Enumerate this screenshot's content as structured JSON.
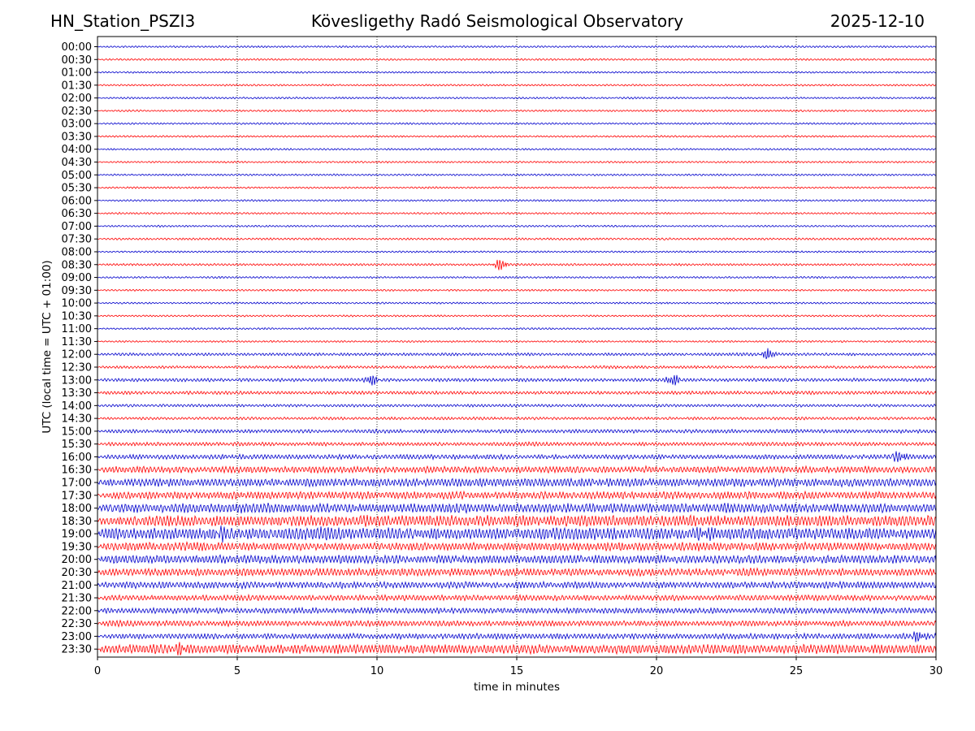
{
  "header": {
    "station": "HN_Station_PSZI3",
    "observatory": "Kövesligethy Radó Seismological Observatory",
    "date": "2025-12-10"
  },
  "chart_data": {
    "type": "line",
    "title": "Kövesligethy Radó Seismological Observatory",
    "xlabel": "time in minutes",
    "ylabel": "UTC (local time = UTC + 01:00)",
    "xlim": [
      0,
      30
    ],
    "xticks": [
      0,
      5,
      10,
      15,
      20,
      25,
      30
    ],
    "grid_x": "dotted vertical lines at each x tick",
    "row_labels": [
      "00:00",
      "00:30",
      "01:00",
      "01:30",
      "02:00",
      "02:30",
      "03:00",
      "03:30",
      "04:00",
      "04:30",
      "05:00",
      "05:30",
      "06:00",
      "06:30",
      "07:00",
      "07:30",
      "08:00",
      "08:30",
      "09:00",
      "09:30",
      "10:00",
      "10:30",
      "11:00",
      "11:30",
      "12:00",
      "12:30",
      "13:00",
      "13:30",
      "14:00",
      "14:30",
      "15:00",
      "15:30",
      "16:00",
      "16:30",
      "17:00",
      "17:30",
      "18:00",
      "18:30",
      "19:00",
      "19:30",
      "20:00",
      "20:30",
      "21:00",
      "21:30",
      "22:00",
      "22:30",
      "23:00",
      "23:30"
    ],
    "row_colors": [
      "#0000cc",
      "#ff0000"
    ],
    "relative_amplitude": [
      0.1,
      0.1,
      0.1,
      0.1,
      0.1,
      0.1,
      0.1,
      0.1,
      0.1,
      0.1,
      0.1,
      0.1,
      0.1,
      0.1,
      0.1,
      0.12,
      0.1,
      0.12,
      0.1,
      0.1,
      0.1,
      0.1,
      0.1,
      0.1,
      0.15,
      0.15,
      0.18,
      0.18,
      0.15,
      0.15,
      0.2,
      0.2,
      0.25,
      0.35,
      0.45,
      0.4,
      0.5,
      0.6,
      0.65,
      0.45,
      0.45,
      0.4,
      0.35,
      0.3,
      0.3,
      0.3,
      0.3,
      0.5
    ],
    "notable_events": [
      {
        "row": "08:30",
        "minute": 14.4
      },
      {
        "row": "12:00",
        "minute": 24.0
      },
      {
        "row": "13:00",
        "minute": 9.8
      },
      {
        "row": "13:00",
        "minute": 20.6
      },
      {
        "row": "16:00",
        "minute": 28.7
      },
      {
        "row": "19:00",
        "minute": 4.4
      },
      {
        "row": "19:00",
        "minute": 21.7
      },
      {
        "row": "23:00",
        "minute": 29.4
      },
      {
        "row": "23:30",
        "minute": 3.0
      }
    ]
  }
}
